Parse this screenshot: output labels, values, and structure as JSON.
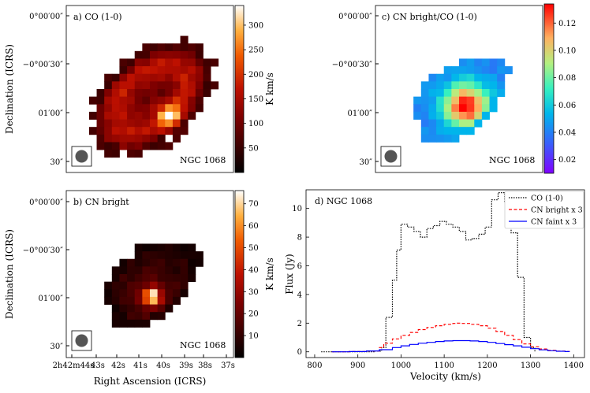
{
  "chart_data": [
    {
      "id": "a",
      "type": "heatmap",
      "panel_label": "a) CO (1-0)",
      "galaxy": "NGC 1068",
      "ylabel": "Declination (ICRS)",
      "yticks": [
        "0°00′00″",
        "−0°00′30″",
        "01′00″",
        "30″"
      ],
      "colorbar": {
        "label": "K km/s",
        "ticks": [
          50,
          100,
          150,
          200,
          250,
          300
        ],
        "range": [
          0,
          340
        ],
        "colormap": "gist_heat"
      },
      "beam": "filled circle"
    },
    {
      "id": "b",
      "type": "heatmap",
      "panel_label": "b) CN bright",
      "galaxy": "NGC 1068",
      "ylabel": "Declination (ICRS)",
      "xlabel": "Right Ascension (ICRS)",
      "yticks": [
        "0°00′00″",
        "−0°00′30″",
        "01′00″",
        "30″"
      ],
      "xticks": [
        "2h42m44s",
        "43s",
        "42s",
        "41s",
        "40s",
        "39s",
        "38s",
        "37s"
      ],
      "colorbar": {
        "label": "K km/s",
        "ticks": [
          10,
          20,
          30,
          40,
          50,
          60,
          70
        ],
        "range": [
          0,
          76
        ],
        "colormap": "gist_heat"
      },
      "beam": "filled circle"
    },
    {
      "id": "c",
      "type": "heatmap",
      "panel_label": "c) CN bright/CO (1-0)",
      "galaxy": "NGC 1068",
      "yticks": [
        "0°00′00″",
        "−0°00′30″",
        "01′00″",
        "30″"
      ],
      "colorbar": {
        "ticks": [
          0.02,
          0.04,
          0.06,
          0.08,
          0.1,
          0.12
        ],
        "range": [
          0.01,
          0.134
        ],
        "colormap": "rainbow"
      },
      "beam": "filled circle"
    },
    {
      "id": "d",
      "type": "line",
      "panel_label": "d) NGC 1068",
      "xlabel": "Velocity (km/s)",
      "ylabel": "Flux (Jy)",
      "xlim": [
        780,
        1425
      ],
      "ylim": [
        -0.4,
        11.3
      ],
      "xticks": [
        800,
        900,
        1000,
        1100,
        1200,
        1300,
        1400
      ],
      "yticks": [
        0,
        2,
        4,
        6,
        8,
        10
      ],
      "legend_position": "top-right",
      "series": [
        {
          "name": "CO (1-0)",
          "color": "#000000",
          "style": "dotted",
          "x": [
            815,
            850,
            900,
            940,
            955,
            965,
            980,
            990,
            1000,
            1015,
            1030,
            1045,
            1060,
            1075,
            1090,
            1105,
            1120,
            1135,
            1150,
            1165,
            1180,
            1195,
            1210,
            1225,
            1240,
            1255,
            1270,
            1285,
            1300,
            1310
          ],
          "y": [
            0,
            0,
            0,
            0.05,
            0.3,
            2.4,
            5.0,
            7.1,
            8.9,
            8.7,
            8.4,
            8.0,
            8.6,
            8.8,
            9.1,
            8.9,
            8.7,
            8.4,
            7.8,
            7.9,
            8.2,
            8.7,
            10.6,
            11.1,
            10.4,
            8.3,
            5.2,
            1.0,
            0.3,
            0
          ]
        },
        {
          "name": "CN bright x 3",
          "color": "#ff0000",
          "style": "dashed",
          "x": [
            840,
            880,
            920,
            950,
            960,
            980,
            1000,
            1020,
            1040,
            1060,
            1080,
            1100,
            1120,
            1130,
            1140,
            1160,
            1180,
            1200,
            1220,
            1240,
            1260,
            1280,
            1300,
            1320,
            1340,
            1360,
            1380,
            1390
          ],
          "y": [
            0,
            0.02,
            0.06,
            0.3,
            0.6,
            0.9,
            1.15,
            1.35,
            1.55,
            1.7,
            1.82,
            1.92,
            1.98,
            2.0,
            1.98,
            1.92,
            1.82,
            1.65,
            1.42,
            1.15,
            0.85,
            0.55,
            0.35,
            0.2,
            0.1,
            0.05,
            0.02,
            0
          ]
        },
        {
          "name": "CN faint x 3",
          "color": "#0000ff",
          "style": "solid",
          "x": [
            840,
            880,
            920,
            950,
            980,
            1000,
            1020,
            1040,
            1060,
            1080,
            1100,
            1120,
            1140,
            1160,
            1180,
            1200,
            1220,
            1240,
            1260,
            1280,
            1300,
            1320,
            1340,
            1360,
            1380,
            1390
          ],
          "y": [
            0,
            0.02,
            0.06,
            0.15,
            0.3,
            0.42,
            0.52,
            0.6,
            0.66,
            0.72,
            0.76,
            0.78,
            0.78,
            0.76,
            0.72,
            0.66,
            0.58,
            0.5,
            0.42,
            0.32,
            0.22,
            0.14,
            0.08,
            0.04,
            0.02,
            0
          ]
        }
      ]
    }
  ]
}
